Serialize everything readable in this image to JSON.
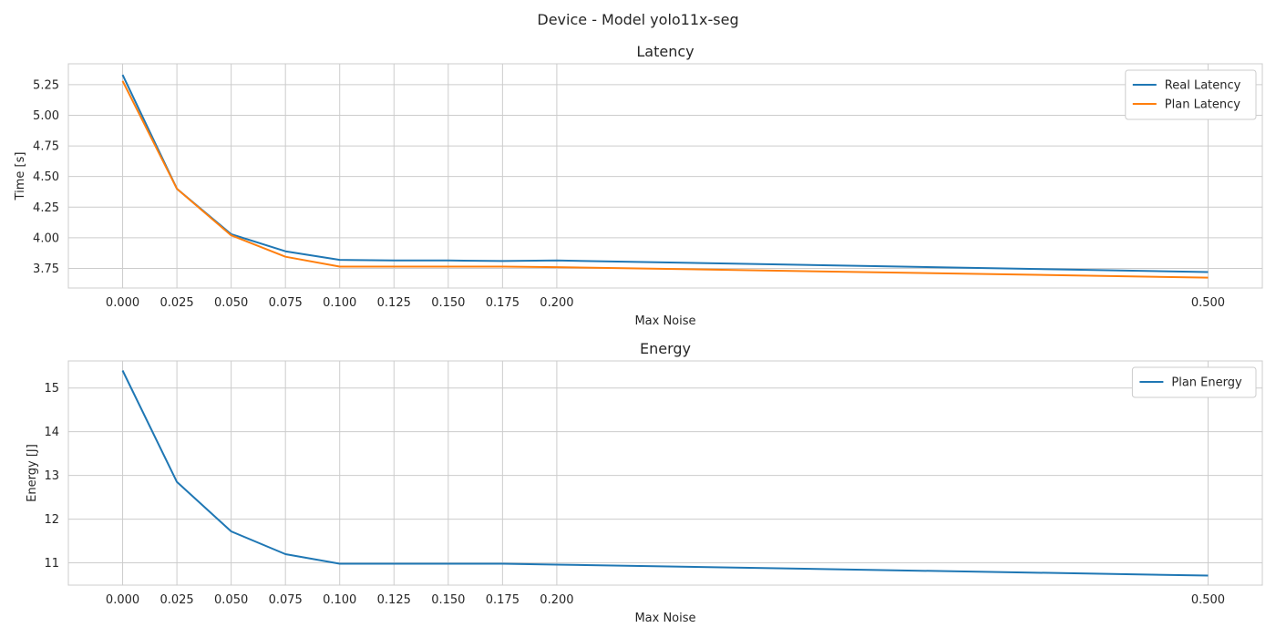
{
  "suptitle": "Device - Model yolo11x-seg",
  "chart_data": [
    {
      "type": "line",
      "title": "Latency",
      "xlabel": "Max Noise",
      "ylabel": "Time [s]",
      "x": [
        0.0,
        0.025,
        0.05,
        0.075,
        0.1,
        0.125,
        0.15,
        0.175,
        0.2,
        0.5
      ],
      "xticks": [
        "0.000",
        "0.025",
        "0.050",
        "0.075",
        "0.100",
        "0.125",
        "0.150",
        "0.175",
        "0.200",
        "0.500"
      ],
      "xlim": [
        -0.025,
        0.525
      ],
      "ylim": [
        3.59,
        5.42
      ],
      "yticks": [
        "3.75",
        "4.00",
        "4.25",
        "4.50",
        "4.75",
        "5.00",
        "5.25"
      ],
      "grid": true,
      "legend": "top-right",
      "series": [
        {
          "name": "Real Latency",
          "color": "#1f77b4",
          "values": [
            5.33,
            4.4,
            4.03,
            3.89,
            3.82,
            3.815,
            3.815,
            3.81,
            3.815,
            3.72
          ]
        },
        {
          "name": "Plan Latency",
          "color": "#ff7f0e",
          "values": [
            5.28,
            4.4,
            4.02,
            3.845,
            3.765,
            3.765,
            3.765,
            3.765,
            3.76,
            3.675
          ]
        }
      ]
    },
    {
      "type": "line",
      "title": "Energy",
      "xlabel": "Max Noise",
      "ylabel": "Energy [J]",
      "x": [
        0.0,
        0.025,
        0.05,
        0.075,
        0.1,
        0.125,
        0.15,
        0.175,
        0.2,
        0.5
      ],
      "xticks": [
        "0.000",
        "0.025",
        "0.050",
        "0.075",
        "0.100",
        "0.125",
        "0.150",
        "0.175",
        "0.200",
        "0.500"
      ],
      "xlim": [
        -0.025,
        0.525
      ],
      "ylim": [
        10.49,
        15.62
      ],
      "yticks": [
        "11",
        "12",
        "13",
        "14",
        "15"
      ],
      "grid": true,
      "legend": "top-right",
      "series": [
        {
          "name": "Plan Energy",
          "color": "#1f77b4",
          "values": [
            15.4,
            12.85,
            11.72,
            11.2,
            10.98,
            10.98,
            10.98,
            10.98,
            10.96,
            10.71
          ]
        }
      ]
    }
  ]
}
